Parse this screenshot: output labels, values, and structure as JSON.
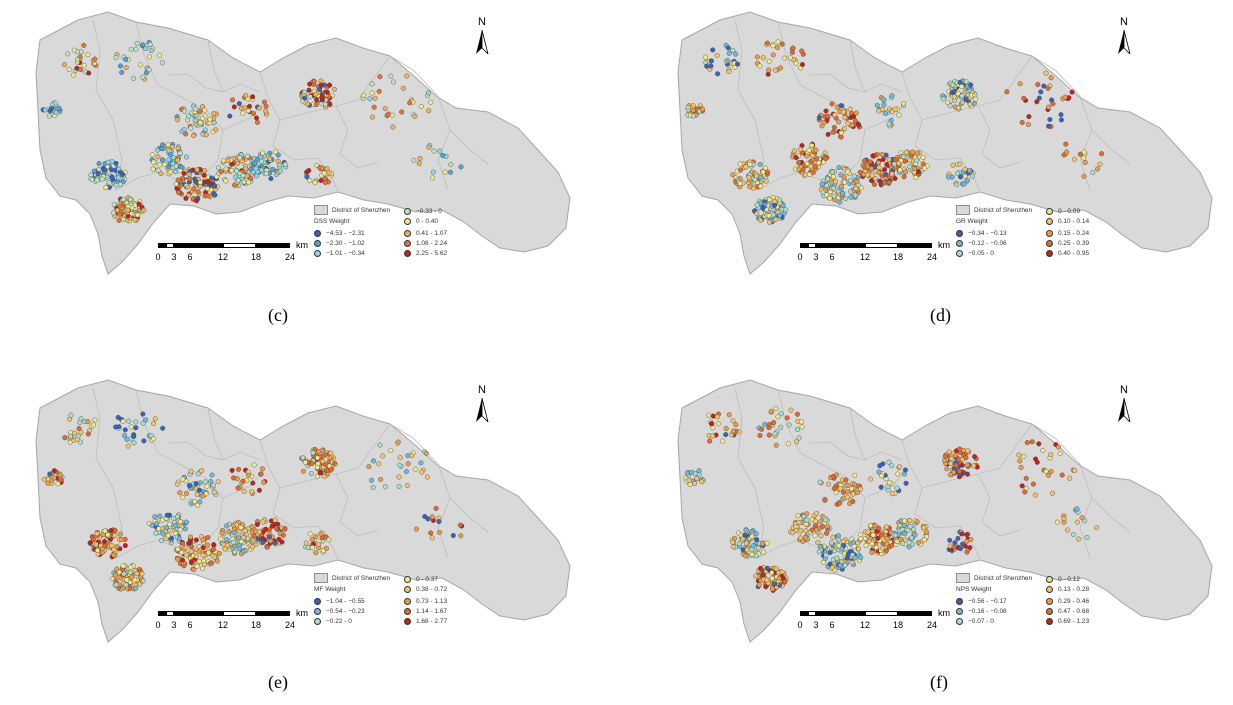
{
  "north_label": "N",
  "scale": {
    "ticks": [
      "0",
      "3",
      "6",
      "12",
      "18",
      "24"
    ],
    "unit": "km"
  },
  "district_label": "District of Shenzhen",
  "panels": [
    {
      "id": "c",
      "label": "(c)",
      "weight_title": "DSS Weight",
      "classes": [
        {
          "range": "−4.53 - −2.31",
          "color": "#3a63b8"
        },
        {
          "range": "−2.30 - −1.02",
          "color": "#4fa3d9"
        },
        {
          "range": "−1.01 - −0.34",
          "color": "#8fd4e8"
        },
        {
          "range": "−0.33 - 0",
          "color": "#b9e3c3"
        },
        {
          "range": "0 - 0.40",
          "color": "#f1e98c"
        },
        {
          "range": "0.41 - 1.07",
          "color": "#f0b25a"
        },
        {
          "range": "1.08 - 2.24",
          "color": "#e8732f"
        },
        {
          "range": "2.25 - 5.62",
          "color": "#c0221e"
        }
      ]
    },
    {
      "id": "d",
      "label": "(d)",
      "weight_title": "GR Weight",
      "classes": [
        {
          "range": "−0.34 - −0.13",
          "color": "#3a63b8"
        },
        {
          "range": "−0.12 - −0.06",
          "color": "#6fb9e0"
        },
        {
          "range": "−0.05 - 0",
          "color": "#a8dcd1"
        },
        {
          "range": "0 - 0.09",
          "color": "#f1e98c"
        },
        {
          "range": "0.10 - 0.14",
          "color": "#f3c46b"
        },
        {
          "range": "0.15 - 0.24",
          "color": "#ee9b47"
        },
        {
          "range": "0.25 - 0.39",
          "color": "#e26a2c"
        },
        {
          "range": "0.40 - 0.95",
          "color": "#c0221e"
        }
      ]
    },
    {
      "id": "e",
      "label": "(e)",
      "weight_title": "MF Weight",
      "classes": [
        {
          "range": "−1.04 - −0.55",
          "color": "#3a63b8"
        },
        {
          "range": "−0.54 - −0.23",
          "color": "#6fb9e0"
        },
        {
          "range": "−0.22 - 0",
          "color": "#a8dcd1"
        },
        {
          "range": "0 - 0.37",
          "color": "#f1e98c"
        },
        {
          "range": "0.38 - 0.72",
          "color": "#f3c46b"
        },
        {
          "range": "0.73 - 1.13",
          "color": "#ee9b47"
        },
        {
          "range": "1.14 - 1.67",
          "color": "#e26a2c"
        },
        {
          "range": "1.68 - 2.77",
          "color": "#c0221e"
        }
      ]
    },
    {
      "id": "f",
      "label": "(f)",
      "weight_title": "NPS Weight",
      "classes": [
        {
          "range": "−0.56 - −0.17",
          "color": "#3a63b8"
        },
        {
          "range": "−0.16 - −0.08",
          "color": "#6fb9e0"
        },
        {
          "range": "−0.07 - 0",
          "color": "#a8dcd1"
        },
        {
          "range": "0 - 0.12",
          "color": "#f1e98c"
        },
        {
          "range": "0.13 - 0.28",
          "color": "#f3c46b"
        },
        {
          "range": "0.29 - 0.46",
          "color": "#ee9b47"
        },
        {
          "range": "0.47 - 0.68",
          "color": "#e26a2c"
        },
        {
          "range": "0.69 - 1.23",
          "color": "#c0221e"
        }
      ]
    }
  ]
}
